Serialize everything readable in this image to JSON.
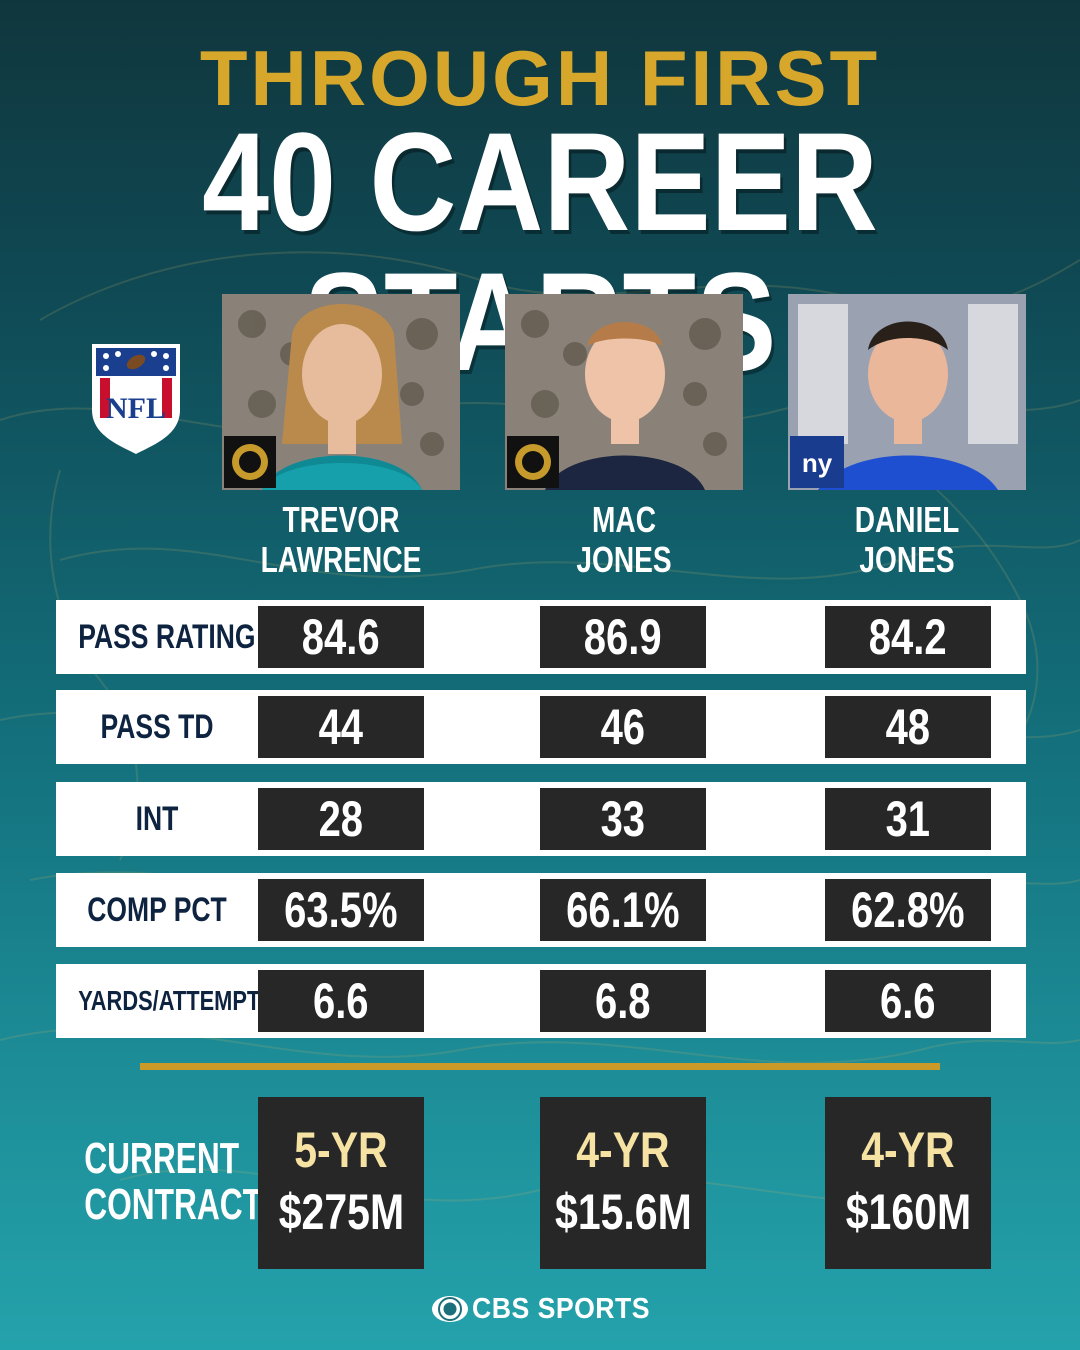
{
  "header": {
    "title_line1": "THROUGH FIRST",
    "title_line2": "40 CAREER STARTS"
  },
  "logo": {
    "icon": "nfl-shield-icon",
    "text": "NFL"
  },
  "players": [
    {
      "first": "TREVOR",
      "last": "LAWRENCE",
      "team_logo": "jaguars-logo-icon"
    },
    {
      "first": "MAC",
      "last": "JONES",
      "team_logo": "jaguars-logo-icon"
    },
    {
      "first": "DANIEL",
      "last": "JONES",
      "team_logo": "giants-logo-icon",
      "team_logo_text": "ny"
    }
  ],
  "stats": [
    {
      "label": "PASS RATING",
      "values": [
        "84.6",
        "86.9",
        "84.2"
      ]
    },
    {
      "label": "PASS TD",
      "values": [
        "44",
        "46",
        "48"
      ]
    },
    {
      "label": "INT",
      "values": [
        "28",
        "33",
        "31"
      ]
    },
    {
      "label": "COMP PCT",
      "values": [
        "63.5%",
        "66.1%",
        "62.8%"
      ]
    },
    {
      "label": "YARDS/ATTEMPT",
      "values": [
        "6.6",
        "6.8",
        "6.6"
      ]
    }
  ],
  "contract": {
    "label_line1": "CURRENT",
    "label_line2": "CONTRACT",
    "items": [
      {
        "years": "5-YR",
        "amount": "$275M"
      },
      {
        "years": "4-YR",
        "amount": "$15.6M"
      },
      {
        "years": "4-YR",
        "amount": "$160M"
      }
    ]
  },
  "footer": {
    "brand": "CBS SPORTS",
    "icon": "cbs-eye-icon"
  },
  "colors": {
    "gold": "#d6a72a",
    "navy": "#0d2340",
    "box": "#272727",
    "contract_years": "#f6e3a3"
  }
}
